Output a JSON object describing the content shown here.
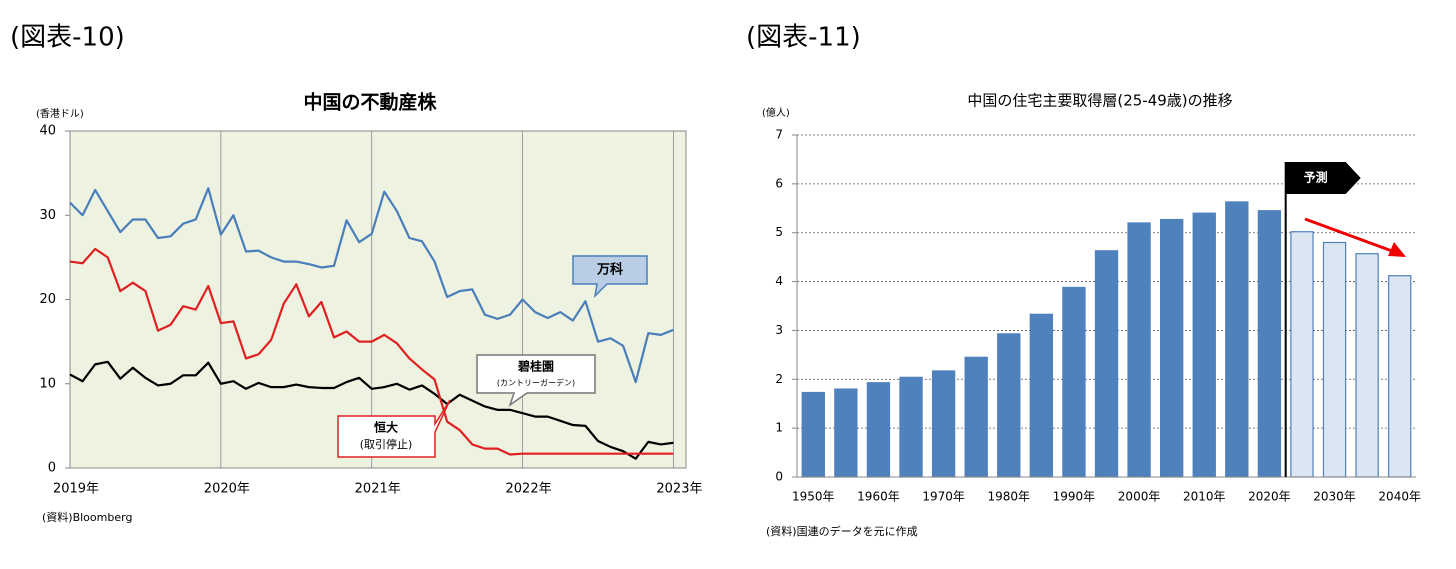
{
  "chart_data": [
    {
      "type": "line",
      "figure_label": "(図表-10)",
      "title": "中国の不動産株",
      "y_unit": "(香港ドル)",
      "source": "(資料)Bloomberg",
      "categories": [
        "2019年",
        null,
        null,
        null,
        null,
        null,
        null,
        null,
        null,
        null,
        null,
        null,
        "2020年",
        null,
        null,
        null,
        null,
        null,
        null,
        null,
        null,
        null,
        null,
        null,
        "2021年",
        null,
        null,
        null,
        null,
        null,
        null,
        null,
        null,
        null,
        null,
        null,
        "2022年",
        null,
        null,
        null,
        null,
        null,
        null,
        null,
        null,
        null,
        null,
        null,
        "2023年"
      ],
      "ylim": [
        0,
        40
      ],
      "yticks": [
        0,
        10,
        20,
        30,
        40
      ],
      "grid_x": true,
      "background": "#eef3e1",
      "series": [
        {
          "name": "万科",
          "color": "#4a7ebb",
          "values": [
            31.5,
            30,
            33,
            30.5,
            28,
            29.5,
            29.5,
            27.3,
            27.5,
            29,
            29.5,
            33.2,
            27.7,
            30,
            25.7,
            25.8,
            25,
            24.5,
            24.5,
            24.2,
            23.8,
            24,
            29.4,
            26.8,
            27.8,
            32.8,
            30.5,
            27.3,
            26.9,
            24.5,
            20.3,
            21,
            21.2,
            18.2,
            17.7,
            18.2,
            20,
            18.5,
            17.8,
            18.5,
            17.5,
            19.8,
            15,
            15.4,
            14.5,
            10.2,
            16,
            15.8,
            16.4
          ]
        },
        {
          "name": "碧桂園",
          "color": "#000000",
          "values": [
            11.1,
            10.3,
            12.3,
            12.6,
            10.6,
            11.9,
            10.7,
            9.8,
            10,
            11,
            11,
            12.5,
            10,
            10.3,
            9.4,
            10.1,
            9.6,
            9.6,
            9.9,
            9.6,
            9.5,
            9.5,
            10.2,
            10.7,
            9.4,
            9.6,
            10,
            9.3,
            9.8,
            8.8,
            7.6,
            8.7,
            8,
            7.3,
            6.9,
            6.9,
            6.5,
            6.1,
            6.1,
            5.6,
            5.1,
            5,
            3.2,
            2.5,
            2,
            1.1,
            3.1,
            2.8,
            3
          ]
        },
        {
          "name": "恒大",
          "color": "#e02020",
          "values": [
            24.5,
            24.3,
            26,
            25,
            21,
            22,
            21,
            16.3,
            17,
            19.2,
            18.8,
            21.6,
            17.2,
            17.4,
            13,
            13.5,
            15.2,
            19.5,
            21.8,
            18,
            19.7,
            15.5,
            16.2,
            15,
            15,
            15.8,
            14.8,
            13,
            11.7,
            10.5,
            5.5,
            4.5,
            2.8,
            2.3,
            2.3,
            1.6,
            1.7,
            1.7,
            1.7,
            1.7,
            1.7,
            1.7,
            1.7,
            1.7,
            1.7,
            1.7,
            1.7,
            1.7,
            1.7
          ]
        }
      ],
      "annotations": [
        "(カントリーガーデン)",
        "(取引停止)"
      ]
    },
    {
      "type": "bar",
      "figure_label": "(図表-11)",
      "title": "中国の住宅主要取得層(25-49歳)の推移",
      "y_unit": "(億人)",
      "source": "(資料)国連のデータを元に作成",
      "categories": [
        "1950年",
        null,
        "1960年",
        null,
        "1970年",
        null,
        "1980年",
        null,
        "1990年",
        null,
        "2000年",
        null,
        "2010年",
        null,
        "2020年",
        null,
        "2030年",
        null,
        "2040年"
      ],
      "values": [
        1.73,
        1.8,
        1.93,
        2.04,
        2.17,
        2.45,
        2.93,
        3.33,
        3.88,
        4.63,
        5.2,
        5.27,
        5.4,
        5.63,
        5.45,
        5.02,
        4.8,
        4.57,
        4.12
      ],
      "colors": [
        "#4f81bd",
        "#4f81bd",
        "#4f81bd",
        "#4f81bd",
        "#4f81bd",
        "#4f81bd",
        "#4f81bd",
        "#4f81bd",
        "#4f81bd",
        "#4f81bd",
        "#4f81bd",
        "#4f81bd",
        "#4f81bd",
        "#4f81bd",
        "#4f81bd",
        "#dce6f2",
        "#dce6f2",
        "#dce6f2",
        "#dce6f2"
      ],
      "edge_color": "#4f81bd",
      "ylim": [
        0,
        7
      ],
      "yticks": [
        0,
        1,
        2,
        3,
        4,
        5,
        6,
        7
      ],
      "grid": true,
      "annotations": [
        "予測"
      ]
    }
  ]
}
